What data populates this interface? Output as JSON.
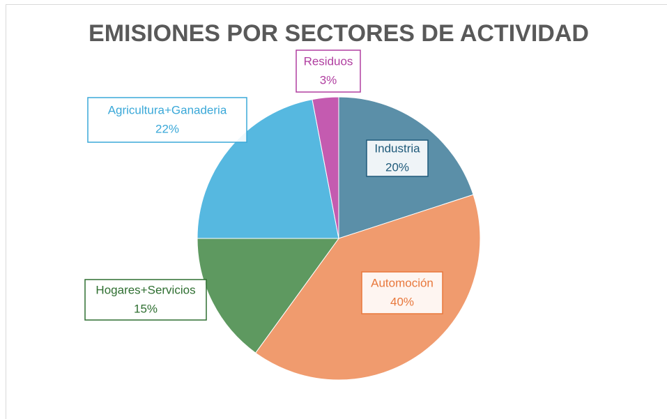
{
  "chart_data": {
    "type": "pie",
    "title": "EMISIONES POR SECTORES DE ACTIVIDAD",
    "categories": [
      "Industria",
      "Automoción",
      "Hogares+Servicios",
      "Agricultura+Ganaderia",
      "Residuos"
    ],
    "values": [
      20,
      40,
      15,
      22,
      3
    ],
    "value_labels": [
      "20%",
      "40%",
      "15%",
      "22%",
      "3%"
    ],
    "colors": [
      "#5b8fa8",
      "#f09b6e",
      "#5e9960",
      "#56b8e0",
      "#c45bb0"
    ],
    "label_colors": [
      "#1f5a7a",
      "#e8783c",
      "#2e6e30",
      "#3aa8d8",
      "#b03ea0"
    ]
  }
}
